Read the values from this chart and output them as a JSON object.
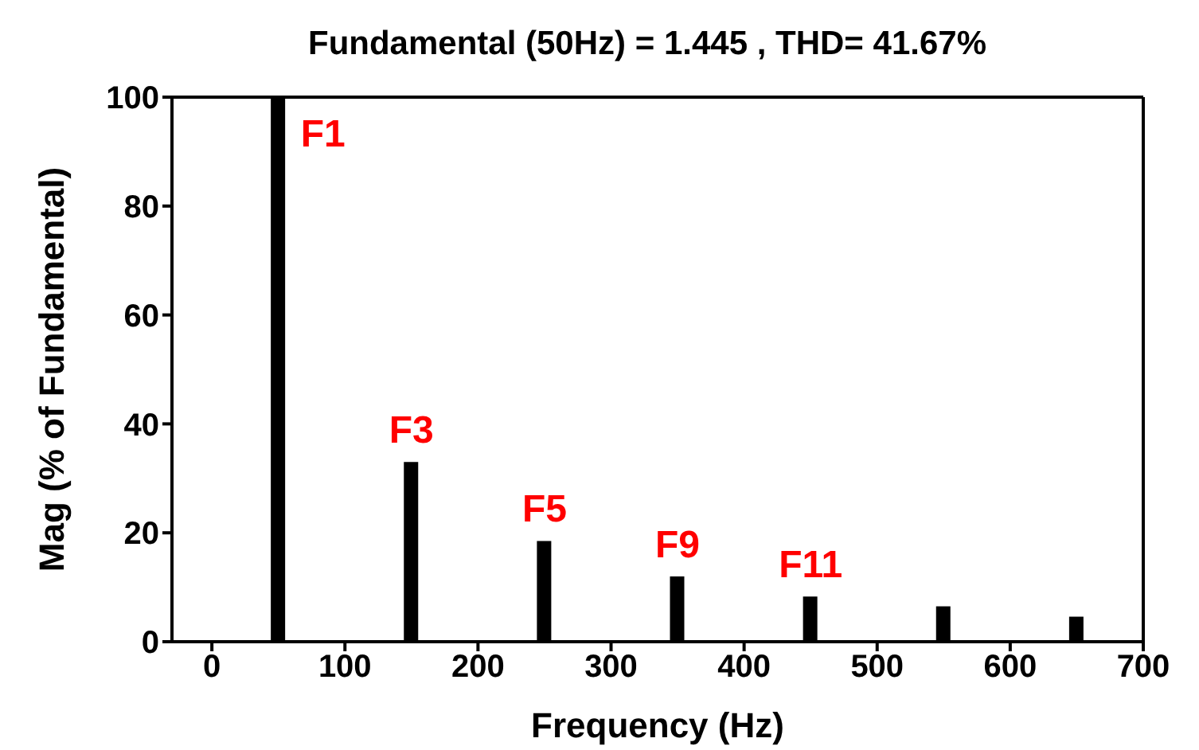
{
  "chart_data": {
    "type": "bar",
    "title": "Fundamental (50Hz) = 1.445 , THD= 41.67%",
    "xlabel": "Frequency (Hz)",
    "ylabel": "Mag (% of Fundamental)",
    "x": [
      50,
      150,
      250,
      350,
      450,
      550,
      650
    ],
    "values": [
      100,
      33,
      18.5,
      12,
      8.3,
      6.5,
      4.6
    ],
    "color": "#000000",
    "xlim": [
      -30,
      700
    ],
    "xticks": [
      0,
      100,
      200,
      300,
      400,
      500,
      600,
      700
    ],
    "ylim": [
      0,
      100
    ],
    "yticks": [
      0,
      20,
      40,
      60,
      80,
      100
    ],
    "grid": false,
    "legend": false,
    "annotations": [
      {
        "text": "F1",
        "x": 50,
        "y": 100
      },
      {
        "text": "F3",
        "x": 150,
        "y": 33
      },
      {
        "text": "F5",
        "x": 250,
        "y": 18.5
      },
      {
        "text": "F9",
        "x": 350,
        "y": 12
      },
      {
        "text": "F11",
        "x": 450,
        "y": 8.3
      }
    ]
  }
}
